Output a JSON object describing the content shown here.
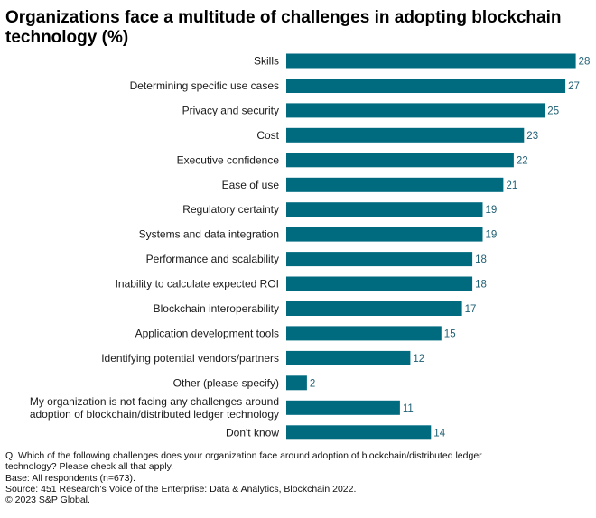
{
  "title": "Organizations face a multitude of challenges in adopting blockchain technology (%)",
  "chart_data": {
    "type": "bar",
    "orientation": "horizontal",
    "title": "Organizations face a multitude of challenges in adopting blockchain technology (%)",
    "xlabel": "",
    "ylabel": "",
    "xlim": [
      0,
      28
    ],
    "grid": false,
    "legend": "none",
    "bar_color": "#006b7f",
    "label_color": "#1f5f74",
    "categories": [
      [
        "Skills"
      ],
      [
        "Determining specific use cases"
      ],
      [
        "Privacy and security"
      ],
      [
        "Cost"
      ],
      [
        "Executive confidence"
      ],
      [
        "Ease of use"
      ],
      [
        "Regulatory certainty"
      ],
      [
        "Systems and data integration"
      ],
      [
        "Performance and scalability"
      ],
      [
        "Inability to calculate expected ROI"
      ],
      [
        "Blockchain interoperability"
      ],
      [
        "Application development tools"
      ],
      [
        "Identifying potential vendors/partners"
      ],
      [
        "Other (please specify)"
      ],
      [
        "My organization is not facing any challenges around",
        "adoption of blockchain/distributed ledger technology"
      ],
      [
        "Don't know"
      ]
    ],
    "values": [
      28,
      27,
      25,
      23,
      22,
      21,
      19,
      19,
      18,
      18,
      17,
      15,
      12,
      2,
      11,
      14
    ]
  },
  "notes": [
    "Q. Which of the following challenges does your organization face around adoption of blockchain/distributed ledger",
    "technology? Please check all that apply.",
    "Base: All respondents (n=673).",
    "Source: 451 Research's Voice of the Enterprise: Data & Analytics, Blockchain 2022.",
    "© 2023 S&P Global."
  ]
}
